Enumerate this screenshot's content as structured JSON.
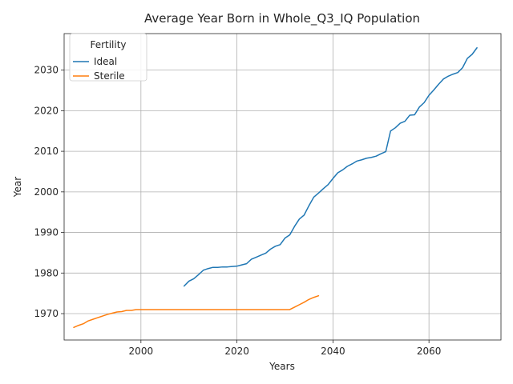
{
  "chart_data": {
    "type": "line",
    "title": "Average Year Born in Whole_Q3_IQ Population",
    "xlabel": "Years",
    "ylabel": "Year",
    "xlim": [
      1984,
      2075
    ],
    "ylim": [
      1963.5,
      2039
    ],
    "xticks": [
      2000,
      2020,
      2040,
      2060
    ],
    "yticks": [
      1970,
      1980,
      1990,
      2000,
      2010,
      2020,
      2030
    ],
    "grid": true,
    "legend": {
      "title": "Fertility",
      "placement": "top-left"
    },
    "series": [
      {
        "name": "Ideal",
        "color": "#1f77b4",
        "x": [
          2009,
          2010,
          2011,
          2012,
          2013,
          2014,
          2015,
          2016,
          2017,
          2018,
          2019,
          2020,
          2021,
          2022,
          2023,
          2024,
          2025,
          2026,
          2027,
          2028,
          2029,
          2030,
          2031,
          2032,
          2033,
          2034,
          2035,
          2036,
          2037,
          2038,
          2039,
          2040,
          2041,
          2042,
          2043,
          2044,
          2045,
          2046,
          2047,
          2048,
          2049,
          2050,
          2051,
          2052,
          2053,
          2054,
          2055,
          2056,
          2057,
          2058,
          2059,
          2060,
          2061,
          2062,
          2063,
          2064,
          2065,
          2066,
          2067,
          2068,
          2069,
          2070
        ],
        "values": [
          1976.8,
          1978.0,
          1978.6,
          1979.6,
          1980.7,
          1981.1,
          1981.4,
          1981.4,
          1981.5,
          1981.5,
          1981.6,
          1981.7,
          1982.0,
          1982.3,
          1983.4,
          1983.9,
          1984.4,
          1984.9,
          1985.9,
          1986.6,
          1987.0,
          1988.6,
          1989.4,
          1991.5,
          1993.3,
          1994.3,
          1996.6,
          1998.7,
          1999.7,
          2000.8,
          2001.8,
          2003.3,
          2004.7,
          2005.4,
          2006.3,
          2006.9,
          2007.6,
          2007.9,
          2008.3,
          2008.5,
          2008.8,
          2009.4,
          2009.9,
          2015.0,
          2015.8,
          2016.9,
          2017.4,
          2018.9,
          2019.0,
          2020.9,
          2022.0,
          2023.8,
          2025.1,
          2026.5,
          2027.8,
          2028.5,
          2029.0,
          2029.4,
          2030.6,
          2032.9,
          2033.9,
          2035.5
        ]
      },
      {
        "name": "Sterile",
        "color": "#ff7f0e",
        "x": [
          1986,
          1987,
          1988,
          1989,
          1990,
          1991,
          1992,
          1993,
          1994,
          1995,
          1996,
          1997,
          1998,
          1999,
          2000,
          2005,
          2010,
          2015,
          2020,
          2025,
          2030,
          2031,
          2032,
          2033,
          2034,
          2035,
          2036,
          2037
        ],
        "values": [
          1966.6,
          1967.1,
          1967.5,
          1968.2,
          1968.6,
          1969.0,
          1969.4,
          1969.8,
          1970.1,
          1970.4,
          1970.5,
          1970.8,
          1970.8,
          1971.0,
          1971.0,
          1971.0,
          1971.0,
          1971.0,
          1971.0,
          1971.0,
          1971.0,
          1971.0,
          1971.6,
          1972.2,
          1972.8,
          1973.5,
          1974.0,
          1974.4
        ]
      }
    ]
  }
}
